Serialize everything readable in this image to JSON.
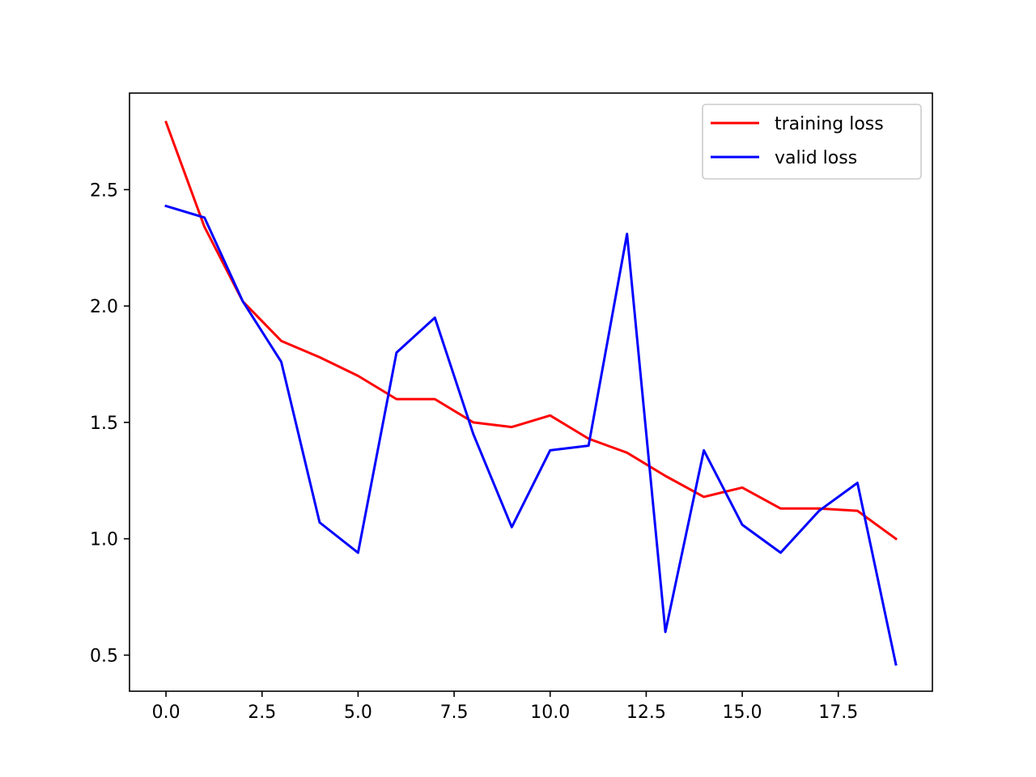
{
  "chart_data": {
    "type": "line",
    "title": "",
    "xlabel": "",
    "ylabel": "",
    "xlim": [
      -0.95,
      19.95
    ],
    "ylim": [
      0.345,
      2.915
    ],
    "xticks": [
      0,
      2.5,
      5,
      7.5,
      10,
      12.5,
      15,
      17.5
    ],
    "xtick_labels": [
      "0.0",
      "2.5",
      "5.0",
      "7.5",
      "10.0",
      "12.5",
      "15.0",
      "17.5"
    ],
    "yticks": [
      0.5,
      1.0,
      1.5,
      2.0,
      2.5
    ],
    "ytick_labels": [
      "0.5",
      "1.0",
      "1.5",
      "2.0",
      "2.5"
    ],
    "grid": false,
    "legend_position": "top-right",
    "x": [
      0,
      1,
      2,
      3,
      4,
      5,
      6,
      7,
      8,
      9,
      10,
      11,
      12,
      13,
      14,
      15,
      16,
      17,
      18,
      19
    ],
    "series": [
      {
        "name": "training loss",
        "color": "#ff0000",
        "values": [
          2.79,
          2.34,
          2.02,
          1.85,
          1.78,
          1.7,
          1.6,
          1.6,
          1.5,
          1.48,
          1.53,
          1.43,
          1.37,
          1.27,
          1.18,
          1.22,
          1.13,
          1.13,
          1.12,
          1.0
        ]
      },
      {
        "name": "valid loss",
        "color": "#0000ff",
        "values": [
          2.43,
          2.38,
          2.02,
          1.76,
          1.07,
          0.94,
          1.8,
          1.95,
          1.45,
          1.05,
          1.38,
          1.4,
          2.31,
          0.6,
          1.38,
          1.06,
          0.94,
          1.12,
          1.24,
          0.46
        ]
      }
    ]
  }
}
